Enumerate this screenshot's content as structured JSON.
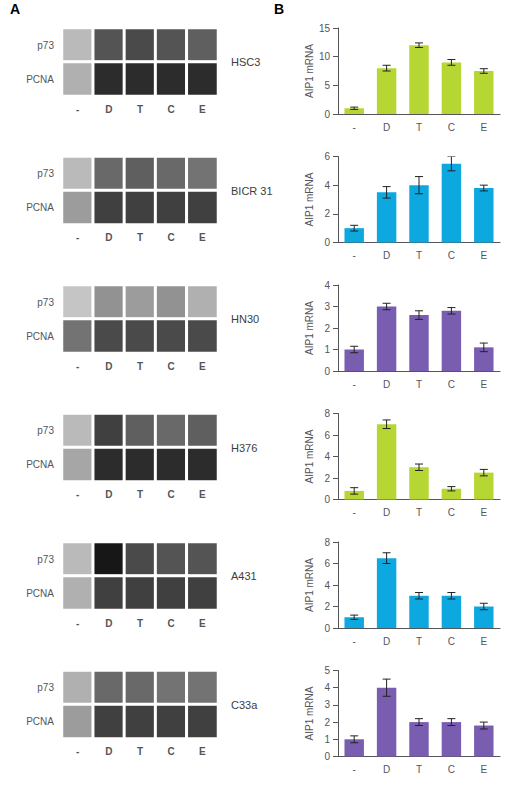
{
  "panel_labels": [
    "A",
    "B"
  ],
  "chart_data": [
    {
      "type": "heatmap",
      "title": "HSC3",
      "categories": [
        "-",
        "D",
        "T",
        "C",
        "E"
      ],
      "rows": [
        "p73",
        "PCNA"
      ],
      "cells": [
        [
          0.15,
          0.65,
          0.7,
          0.65,
          0.6
        ],
        [
          0.2,
          0.85,
          0.85,
          0.85,
          0.85
        ]
      ],
      "clim": [
        0,
        1
      ]
    },
    {
      "type": "heatmap",
      "title": "BICR 31",
      "categories": [
        "-",
        "D",
        "T",
        "C",
        "E"
      ],
      "rows": [
        "p73",
        "PCNA"
      ],
      "cells": [
        [
          0.15,
          0.55,
          0.6,
          0.55,
          0.5
        ],
        [
          0.3,
          0.75,
          0.75,
          0.75,
          0.75
        ]
      ],
      "clim": [
        0,
        1
      ]
    },
    {
      "type": "heatmap",
      "title": "HN30",
      "categories": [
        "-",
        "D",
        "T",
        "C",
        "E"
      ],
      "rows": [
        "p73",
        "PCNA"
      ],
      "cells": [
        [
          0.1,
          0.35,
          0.3,
          0.35,
          0.2
        ],
        [
          0.5,
          0.7,
          0.7,
          0.7,
          0.7
        ]
      ],
      "clim": [
        0,
        1
      ]
    },
    {
      "type": "heatmap",
      "title": "H376",
      "categories": [
        "-",
        "D",
        "T",
        "C",
        "E"
      ],
      "rows": [
        "p73",
        "PCNA"
      ],
      "cells": [
        [
          0.15,
          0.75,
          0.6,
          0.55,
          0.6
        ],
        [
          0.25,
          0.85,
          0.85,
          0.85,
          0.85
        ]
      ],
      "clim": [
        0,
        1
      ]
    },
    {
      "type": "heatmap",
      "title": "A431",
      "categories": [
        "-",
        "D",
        "T",
        "C",
        "E"
      ],
      "rows": [
        "p73",
        "PCNA"
      ],
      "cells": [
        [
          0.15,
          0.95,
          0.7,
          0.65,
          0.65
        ],
        [
          0.2,
          0.75,
          0.75,
          0.75,
          0.75
        ]
      ],
      "clim": [
        0,
        1
      ]
    },
    {
      "type": "heatmap",
      "title": "C33a",
      "categories": [
        "-",
        "D",
        "T",
        "C",
        "E"
      ],
      "rows": [
        "p73",
        "PCNA"
      ],
      "cells": [
        [
          0.2,
          0.55,
          0.55,
          0.5,
          0.5
        ],
        [
          0.3,
          0.75,
          0.75,
          0.75,
          0.75
        ]
      ],
      "clim": [
        0,
        1
      ]
    },
    {
      "type": "bar",
      "categories": [
        "-",
        "D",
        "T",
        "C",
        "E"
      ],
      "values": [
        1.0,
        8.0,
        12.0,
        9.0,
        7.5
      ],
      "errors": [
        0.2,
        0.5,
        0.4,
        0.5,
        0.4
      ],
      "ylabel": "AIP1 mRNA",
      "ylim": [
        0,
        15
      ],
      "yticks": [
        0,
        5,
        10,
        15
      ],
      "grid": false
    },
    {
      "type": "bar",
      "categories": [
        "-",
        "D",
        "T",
        "C",
        "E"
      ],
      "values": [
        1.0,
        3.5,
        4.0,
        5.5,
        3.8
      ],
      "errors": [
        0.2,
        0.4,
        0.6,
        0.5,
        0.2
      ],
      "ylabel": "AIP1 mRNA",
      "ylim": [
        0,
        6
      ],
      "yticks": [
        0,
        2,
        4,
        6
      ],
      "grid": false
    },
    {
      "type": "bar",
      "categories": [
        "-",
        "D",
        "T",
        "C",
        "E"
      ],
      "values": [
        1.0,
        3.0,
        2.6,
        2.8,
        1.1
      ],
      "errors": [
        0.15,
        0.15,
        0.2,
        0.15,
        0.2
      ],
      "ylabel": "AIP1 mRNA",
      "ylim": [
        0,
        4
      ],
      "yticks": [
        0,
        1,
        2,
        3,
        4
      ],
      "grid": false
    },
    {
      "type": "bar",
      "categories": [
        "-",
        "D",
        "T",
        "C",
        "E"
      ],
      "values": [
        0.8,
        7.0,
        3.0,
        1.0,
        2.5
      ],
      "errors": [
        0.3,
        0.4,
        0.3,
        0.2,
        0.3
      ],
      "ylabel": "AIP1 mRNA",
      "ylim": [
        0,
        8
      ],
      "yticks": [
        0,
        2,
        4,
        6,
        8
      ],
      "grid": false
    },
    {
      "type": "bar",
      "categories": [
        "-",
        "D",
        "T",
        "C",
        "E"
      ],
      "values": [
        1.0,
        6.5,
        3.0,
        3.0,
        2.0
      ],
      "errors": [
        0.2,
        0.5,
        0.3,
        0.3,
        0.3
      ],
      "ylabel": "AIP1 mRNA",
      "ylim": [
        0,
        8
      ],
      "yticks": [
        0,
        2,
        4,
        6,
        8
      ],
      "grid": false
    },
    {
      "type": "bar",
      "categories": [
        "-",
        "D",
        "T",
        "C",
        "E"
      ],
      "values": [
        1.0,
        4.0,
        2.0,
        2.0,
        1.8
      ],
      "errors": [
        0.2,
        0.5,
        0.2,
        0.2,
        0.2
      ],
      "ylabel": "AIP1 mRNA",
      "ylim": [
        0,
        5
      ],
      "yticks": [
        0,
        1,
        2,
        3,
        4,
        5
      ],
      "grid": false
    }
  ]
}
